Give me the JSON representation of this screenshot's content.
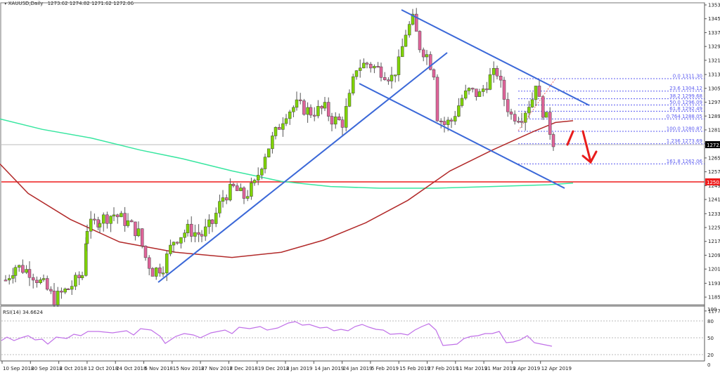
{
  "header": {
    "symbol_label": "XAUUSD,Daily",
    "ohlc": "1273.62 1274.82 1271.62 1272.06"
  },
  "rsi_panel": {
    "label": "RSI(14) 34.6624",
    "levels": [
      "100",
      "80",
      "50",
      "20",
      "0"
    ]
  },
  "colors": {
    "bull": "#7fd400",
    "bear": "#e0649a",
    "wick": "#555555",
    "trendline": "#3b68d8",
    "ma_red": "#b22a2a",
    "ma_green": "#38e6a0",
    "support_line": "#ee1c1c",
    "fib": "#5b5bf0",
    "rsi_line": "#c070e8",
    "arrow": "#e81c1c",
    "current_price_bg": "#000000",
    "support_bg": "#ee1c1c"
  },
  "chart_data": {
    "type": "candlestick",
    "title": "XAUUSD,Daily",
    "ylabel": "Price",
    "ylim": [
      1177.1,
      1353.9
    ],
    "price_ticks": [
      "1353.90",
      "1345.90",
      "1337.90",
      "1329.90",
      "1321.90",
      "1313.70",
      "1305.70",
      "1297.70",
      "1289.70",
      "1281.70",
      "1273.50",
      "1265.50",
      "1257.50",
      "1249.50",
      "1241.50",
      "1233.30",
      "1225.30",
      "1217.30",
      "1209.30",
      "1201.30",
      "1193.10",
      "1185.10",
      "1177.10"
    ],
    "date_ticks": [
      "10 Sep 2018",
      "20 Sep 2018",
      "2 Oct 2018",
      "12 Oct 2018",
      "24 Oct 2018",
      "5 Nov 2018",
      "15 Nov 2018",
      "27 Nov 2018",
      "7 Dec 2018",
      "19 Dec 2018",
      "2 Jan 2019",
      "14 Jan 2019",
      "24 Jan 2019",
      "5 Feb 2019",
      "15 Feb 2019",
      "27 Feb 2019",
      "11 Mar 2019",
      "21 Mar 2019",
      "2 Apr 2019",
      "12 Apr 2019"
    ],
    "current_price": "1272.06",
    "support_level": "1250.47",
    "fibonacci": [
      {
        "level": "0.0",
        "price": "1311.30"
      },
      {
        "level": "23.6",
        "price": "1304.12"
      },
      {
        "level": "38.2",
        "price": "1299.68"
      },
      {
        "level": "50.0",
        "price": "1296.09"
      },
      {
        "level": "61.8",
        "price": "1292.49"
      },
      {
        "level": "0.764",
        "price": "1288.05"
      },
      {
        "level": "100.0",
        "price": "1280.87"
      },
      {
        "level": "1.236",
        "price": "1273.69"
      },
      {
        "level": "161.8",
        "price": "1262.06"
      }
    ],
    "series": [
      {
        "name": "100-day SMA (red)",
        "points": [
          [
            0,
            1262
          ],
          [
            40,
            1245
          ],
          [
            100,
            1230
          ],
          [
            170,
            1217
          ],
          [
            250,
            1211
          ],
          [
            330,
            1208
          ],
          [
            400,
            1211
          ],
          [
            460,
            1218
          ],
          [
            520,
            1228
          ],
          [
            580,
            1241
          ],
          [
            640,
            1258
          ],
          [
            700,
            1270
          ],
          [
            760,
            1281
          ],
          [
            790,
            1286
          ],
          [
            815,
            1287
          ]
        ]
      },
      {
        "name": "200-day SMA (green)",
        "points": [
          [
            0,
            1288
          ],
          [
            60,
            1282
          ],
          [
            130,
            1277
          ],
          [
            200,
            1270
          ],
          [
            260,
            1265
          ],
          [
            330,
            1258
          ],
          [
            400,
            1252
          ],
          [
            470,
            1249
          ],
          [
            540,
            1248
          ],
          [
            620,
            1248
          ],
          [
            700,
            1249
          ],
          [
            780,
            1250
          ],
          [
            815,
            1251
          ]
        ]
      }
    ],
    "rsi": {
      "name": "RSI(14)",
      "last": 34.6624,
      "ylim": [
        0,
        100
      ],
      "levels": [
        20,
        50,
        80
      ]
    },
    "annotations": [
      "Ascending trendline (Nov 2018 - Feb 2019)",
      "Descending channel (Feb 2019 - Apr 2019)",
      "Horizontal support 1250.47",
      "Red bearish arrow projecting toward 1262.06"
    ]
  }
}
